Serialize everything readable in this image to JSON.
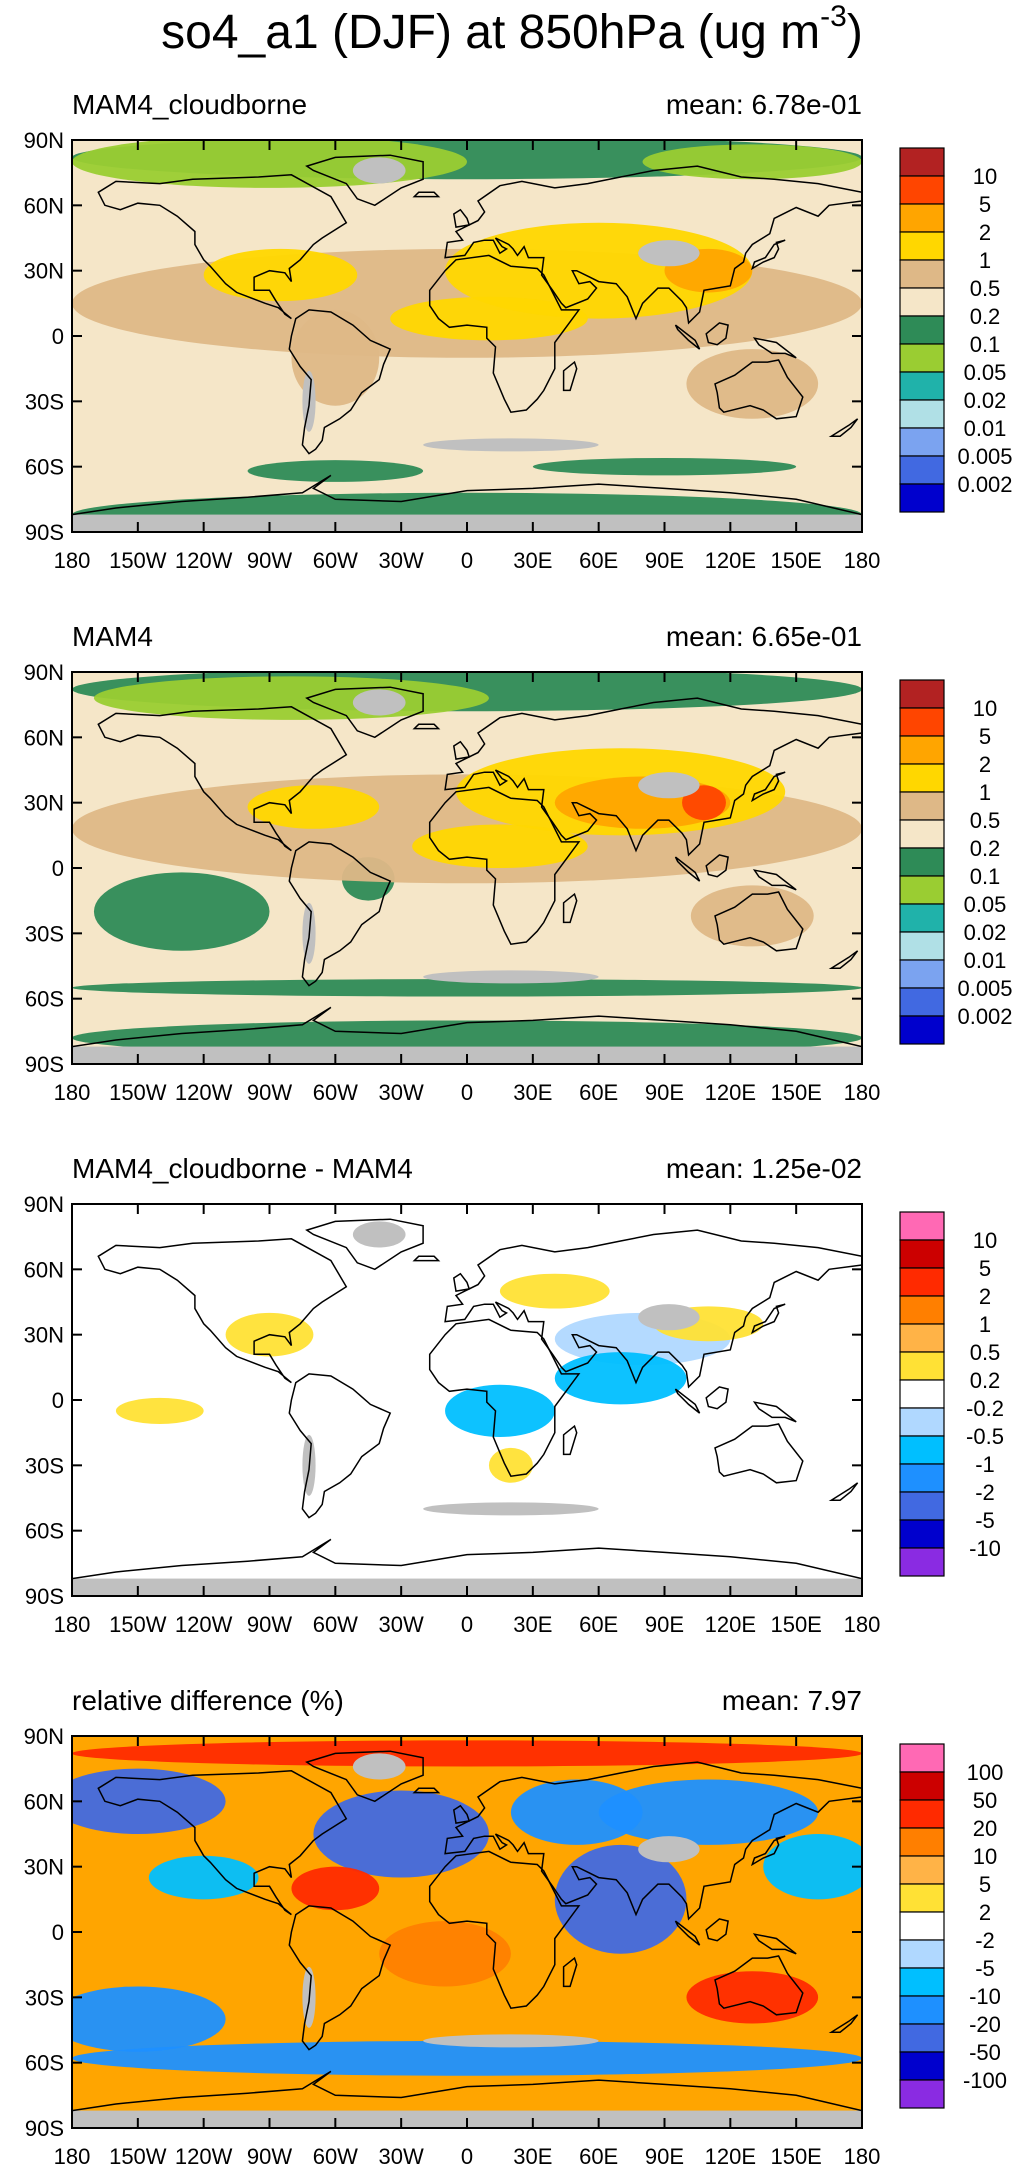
{
  "figure": {
    "title_main": "so4_a1 (DJF) at 850hPa (ug m",
    "title_sup": "-3",
    "title_end": ")"
  },
  "axes": {
    "lon_labels": [
      "180",
      "150W",
      "120W",
      "90W",
      "60W",
      "30W",
      "0",
      "30E",
      "60E",
      "90E",
      "120E",
      "150E",
      "180"
    ],
    "lat_labels": [
      "90N",
      "60N",
      "30N",
      "0",
      "30S",
      "60S",
      "90S"
    ]
  },
  "panels": [
    {
      "label": "MAM4_cloudborne",
      "mean": "mean: 6.78e-01",
      "background": "#f5e6c8",
      "colorbar": {
        "colors": [
          "#b22222",
          "#ff4500",
          "#ffa500",
          "#ffd700",
          "#deb887",
          "#f5e6c8",
          "#2e8b57",
          "#9acd32",
          "#20b2aa",
          "#b0e0e6",
          "#7ba3f0",
          "#4169e1",
          "#0000cd"
        ],
        "labels": [
          "10",
          "5",
          "2",
          "1",
          "0.5",
          "0.2",
          "0.1",
          "0.05",
          "0.02",
          "0.01",
          "0.005",
          "0.002"
        ]
      }
    },
    {
      "label": "MAM4",
      "mean": "mean: 6.65e-01",
      "background": "#f5e6c8",
      "colorbar": {
        "colors": [
          "#b22222",
          "#ff4500",
          "#ffa500",
          "#ffd700",
          "#deb887",
          "#f5e6c8",
          "#2e8b57",
          "#9acd32",
          "#20b2aa",
          "#b0e0e6",
          "#7ba3f0",
          "#4169e1",
          "#0000cd"
        ],
        "labels": [
          "10",
          "5",
          "2",
          "1",
          "0.5",
          "0.2",
          "0.1",
          "0.05",
          "0.02",
          "0.01",
          "0.005",
          "0.002"
        ]
      }
    },
    {
      "label": "MAM4_cloudborne - MAM4",
      "mean": "mean: 1.25e-02",
      "background": "#ffffff",
      "colorbar": {
        "colors": [
          "#ff69b4",
          "#cc0000",
          "#ff2a00",
          "#ff7f00",
          "#ffb347",
          "#ffe135",
          "#ffffff",
          "#b0d8ff",
          "#00bfff",
          "#1e90ff",
          "#4169e1",
          "#0000cd",
          "#8a2be2"
        ],
        "labels": [
          "10",
          "5",
          "2",
          "1",
          "0.5",
          "0.2",
          "-0.2",
          "-0.5",
          "-1",
          "-2",
          "-5",
          "-10"
        ]
      }
    },
    {
      "label": "relative difference (%)",
      "mean": "mean:  7.97",
      "background": "#ffa500",
      "colorbar": {
        "colors": [
          "#ff69b4",
          "#cc0000",
          "#ff2a00",
          "#ff7f00",
          "#ffb347",
          "#ffe135",
          "#ffffff",
          "#b0d8ff",
          "#00bfff",
          "#1e90ff",
          "#4169e1",
          "#0000cd",
          "#8a2be2"
        ],
        "labels": [
          "100",
          "50",
          "20",
          "10",
          "5",
          "2",
          "-2",
          "-5",
          "-10",
          "-20",
          "-50",
          "-100"
        ]
      }
    }
  ]
}
